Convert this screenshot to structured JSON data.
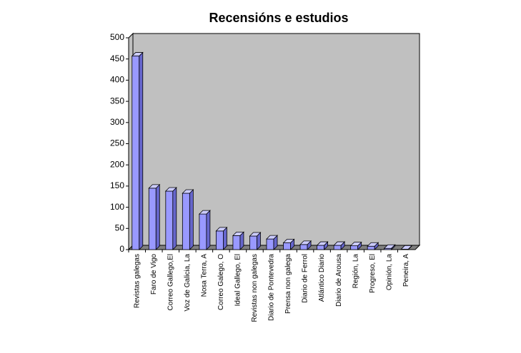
{
  "chart_data": {
    "type": "bar3d",
    "title": "Recensións e estudios",
    "categories": [
      "Revistas galegas",
      "Faro de Vigo",
      "Correo Gallego,El",
      "Voz de Galicia, La",
      "Nosa Terra, A",
      "Correo Galego, O",
      "Ideal Gallego, El",
      "Revistas non galegas",
      "Diario de Pontevedra",
      "Prensa non galega",
      "Diario de Ferrol",
      "Atlántico Diario",
      "Diario de Arousa",
      "Región, La",
      "Progreso, El",
      "Opinión, La",
      "Peneira, A"
    ],
    "values": [
      457,
      145,
      138,
      133,
      84,
      44,
      33,
      32,
      25,
      16,
      12,
      10,
      10,
      9,
      8,
      3,
      1
    ],
    "color": "#9999ff",
    "ylim": [
      0,
      500
    ],
    "yticks": [
      0,
      50,
      100,
      150,
      200,
      250,
      300,
      350,
      400,
      450,
      500
    ],
    "grid": false
  }
}
